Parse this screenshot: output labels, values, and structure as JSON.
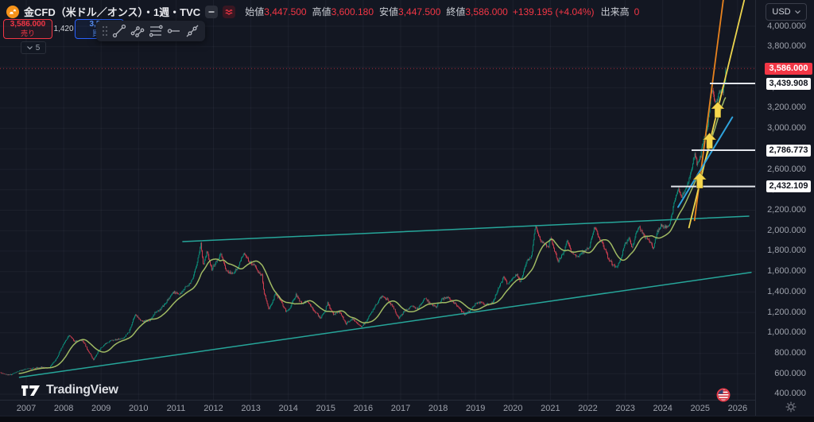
{
  "header": {
    "symbol_title": "金CFD（米ドル／オンス）・1週・TVC",
    "legend": [
      {
        "label": "始値",
        "value": "3,447.500"
      },
      {
        "label": "高値",
        "value": "3,600.180"
      },
      {
        "label": "安値",
        "value": "3,447.500"
      },
      {
        "label": "終値",
        "value": "3,586.000"
      }
    ],
    "change": "+139.195 (+4.04%)",
    "volume_label": "出来高",
    "volume_value": "0",
    "label_color": "#c9ccd3",
    "value_color": "#f23645",
    "symbol_icon_color": "#f7931a"
  },
  "trade_panel": {
    "sell": {
      "price": "3,586.000",
      "label": "売り",
      "color": "#f23645"
    },
    "spread": "1,420",
    "buy": {
      "price": "3,587",
      "label": "買い",
      "color": "#2962ff"
    }
  },
  "drawing_toolbar": {
    "icons": [
      "drag-handle",
      "trend-line",
      "parallel-trend-lines",
      "horizontal-lines",
      "horizontal-ray",
      "extended-line"
    ]
  },
  "object_tree_badge": {
    "count": "5"
  },
  "price_axis": {
    "currency": "USD",
    "tick_values": [
      4000,
      3800,
      3600,
      3400,
      3200,
      3000,
      2800,
      2600,
      2400,
      2200,
      2000,
      1800,
      1600,
      1400,
      1200,
      1000,
      800,
      600,
      400
    ],
    "current_price_label": {
      "value": 3586.0,
      "text": "3,586.000"
    },
    "level_labels": [
      {
        "value": 3439.908,
        "text": "3,439.908"
      },
      {
        "value": 2786.773,
        "text": "2,786.773"
      },
      {
        "value": 2432.109,
        "text": "2,432.109"
      }
    ]
  },
  "time_axis": {
    "years": [
      2007,
      2008,
      2009,
      2010,
      2011,
      2012,
      2013,
      2014,
      2015,
      2016,
      2017,
      2018,
      2019,
      2020,
      2021,
      2022,
      2023,
      2024,
      2025,
      2026
    ]
  },
  "footer": {
    "logo_text": "TradingView"
  },
  "event_marker": {
    "type": "us-flag",
    "year": 2025.6
  },
  "chart_data": {
    "type": "candlestick",
    "title": "金CFD（米ドル／オンス） 1週 TVC",
    "x_range": [
      2006.3,
      2026.45
    ],
    "y_range": [
      380,
      4050
    ],
    "x_ticks": [
      2007,
      2008,
      2009,
      2010,
      2011,
      2012,
      2013,
      2014,
      2015,
      2016,
      2017,
      2018,
      2019,
      2020,
      2021,
      2022,
      2023,
      2024,
      2025,
      2026
    ],
    "y_ticks": [
      400,
      600,
      800,
      1000,
      1200,
      1400,
      1600,
      1800,
      2000,
      2200,
      2400,
      2600,
      2800,
      3000,
      3200,
      3400,
      3600,
      3800,
      4000
    ],
    "last_candle": {
      "open": 3447.5,
      "high": 3600.18,
      "low": 3447.5,
      "close": 3586.0
    },
    "current_price": 3586.0,
    "ma_window": 26,
    "colors": {
      "up": "#0b9a83",
      "down": "#e14254",
      "ma": "#a0ba63",
      "trend": "#26a69a",
      "ray": "#e3e6ec",
      "arrow": "#f6d74d",
      "price_line": "#f23645"
    },
    "price_anchors": [
      [
        2006.3,
        612
      ],
      [
        2006.55,
        585
      ],
      [
        2006.8,
        625
      ],
      [
        2007.0,
        645
      ],
      [
        2007.2,
        655
      ],
      [
        2007.45,
        665
      ],
      [
        2007.6,
        650
      ],
      [
        2007.8,
        745
      ],
      [
        2008.0,
        890
      ],
      [
        2008.15,
        975
      ],
      [
        2008.3,
        915
      ],
      [
        2008.5,
        930
      ],
      [
        2008.65,
        830
      ],
      [
        2008.8,
        735
      ],
      [
        2008.95,
        835
      ],
      [
        2009.15,
        905
      ],
      [
        2009.3,
        930
      ],
      [
        2009.45,
        935
      ],
      [
        2009.6,
        950
      ],
      [
        2009.75,
        1010
      ],
      [
        2009.9,
        1180
      ],
      [
        2010.1,
        1110
      ],
      [
        2010.3,
        1125
      ],
      [
        2010.45,
        1200
      ],
      [
        2010.6,
        1235
      ],
      [
        2010.8,
        1330
      ],
      [
        2010.95,
        1400
      ],
      [
        2011.1,
        1375
      ],
      [
        2011.25,
        1440
      ],
      [
        2011.45,
        1520
      ],
      [
        2011.6,
        1750
      ],
      [
        2011.67,
        1880
      ],
      [
        2011.73,
        1650
      ],
      [
        2011.83,
        1800
      ],
      [
        2011.95,
        1620
      ],
      [
        2012.1,
        1710
      ],
      [
        2012.2,
        1770
      ],
      [
        2012.35,
        1600
      ],
      [
        2012.5,
        1580
      ],
      [
        2012.65,
        1630
      ],
      [
        2012.8,
        1780
      ],
      [
        2012.95,
        1700
      ],
      [
        2013.1,
        1660
      ],
      [
        2013.2,
        1590
      ],
      [
        2013.3,
        1560
      ],
      [
        2013.35,
        1400
      ],
      [
        2013.48,
        1230
      ],
      [
        2013.6,
        1320
      ],
      [
        2013.65,
        1395
      ],
      [
        2013.8,
        1310
      ],
      [
        2013.95,
        1205
      ],
      [
        2014.05,
        1250
      ],
      [
        2014.2,
        1375
      ],
      [
        2014.35,
        1290
      ],
      [
        2014.5,
        1310
      ],
      [
        2014.65,
        1240
      ],
      [
        2014.85,
        1145
      ],
      [
        2014.95,
        1190
      ],
      [
        2015.05,
        1290
      ],
      [
        2015.2,
        1180
      ],
      [
        2015.35,
        1210
      ],
      [
        2015.55,
        1090
      ],
      [
        2015.7,
        1135
      ],
      [
        2015.8,
        1110
      ],
      [
        2015.95,
        1055
      ],
      [
        2016.1,
        1120
      ],
      [
        2016.3,
        1250
      ],
      [
        2016.5,
        1365
      ],
      [
        2016.65,
        1320
      ],
      [
        2016.8,
        1255
      ],
      [
        2016.95,
        1135
      ],
      [
        2017.1,
        1215
      ],
      [
        2017.3,
        1260
      ],
      [
        2017.45,
        1230
      ],
      [
        2017.65,
        1345
      ],
      [
        2017.8,
        1280
      ],
      [
        2017.95,
        1255
      ],
      [
        2018.1,
        1330
      ],
      [
        2018.25,
        1350
      ],
      [
        2018.4,
        1300
      ],
      [
        2018.55,
        1250
      ],
      [
        2018.7,
        1180
      ],
      [
        2018.85,
        1215
      ],
      [
        2019.0,
        1285
      ],
      [
        2019.15,
        1300
      ],
      [
        2019.3,
        1275
      ],
      [
        2019.45,
        1290
      ],
      [
        2019.6,
        1420
      ],
      [
        2019.75,
        1550
      ],
      [
        2019.85,
        1480
      ],
      [
        2019.95,
        1515
      ],
      [
        2020.1,
        1575
      ],
      [
        2020.2,
        1495
      ],
      [
        2020.35,
        1685
      ],
      [
        2020.5,
        1755
      ],
      [
        2020.6,
        2060
      ],
      [
        2020.72,
        1910
      ],
      [
        2020.85,
        1870
      ],
      [
        2020.95,
        1840
      ],
      [
        2021.0,
        1950
      ],
      [
        2021.1,
        1820
      ],
      [
        2021.2,
        1695
      ],
      [
        2021.35,
        1780
      ],
      [
        2021.45,
        1900
      ],
      [
        2021.55,
        1790
      ],
      [
        2021.65,
        1770
      ],
      [
        2021.75,
        1745
      ],
      [
        2021.85,
        1790
      ],
      [
        2021.95,
        1805
      ],
      [
        2022.05,
        1850
      ],
      [
        2022.18,
        2040
      ],
      [
        2022.3,
        1930
      ],
      [
        2022.42,
        1850
      ],
      [
        2022.55,
        1725
      ],
      [
        2022.68,
        1660
      ],
      [
        2022.78,
        1640
      ],
      [
        2022.9,
        1755
      ],
      [
        2023.0,
        1870
      ],
      [
        2023.1,
        1935
      ],
      [
        2023.18,
        1830
      ],
      [
        2023.3,
        1990
      ],
      [
        2023.38,
        2030
      ],
      [
        2023.5,
        1950
      ],
      [
        2023.62,
        1920
      ],
      [
        2023.75,
        1830
      ],
      [
        2023.85,
        1985
      ],
      [
        2023.95,
        2050
      ],
      [
        2024.05,
        2045
      ],
      [
        2024.15,
        2030
      ],
      [
        2024.25,
        2170
      ],
      [
        2024.35,
        2350
      ],
      [
        2024.42,
        2415
      ],
      [
        2024.5,
        2330
      ],
      [
        2024.6,
        2390
      ],
      [
        2024.7,
        2500
      ],
      [
        2024.8,
        2660
      ],
      [
        2024.86,
        2770
      ],
      [
        2024.92,
        2650
      ],
      [
        2025.0,
        2710
      ],
      [
        2025.08,
        2870
      ],
      [
        2025.15,
        2935
      ],
      [
        2025.22,
        3090
      ],
      [
        2025.3,
        3420
      ],
      [
        2025.36,
        3310
      ],
      [
        2025.42,
        3240
      ],
      [
        2025.5,
        3330
      ],
      [
        2025.56,
        3390
      ],
      [
        2025.6,
        3345
      ],
      [
        2025.66,
        3450
      ]
    ],
    "levels": [
      {
        "value": 3439.908,
        "start_year": 2025.26
      },
      {
        "value": 2786.773,
        "start_year": 2024.77
      },
      {
        "value": 2432.109,
        "start_year": 2024.22
      }
    ],
    "trendlines": [
      {
        "name": "upper-resistance",
        "color": "#26a69a",
        "width": 1.5,
        "from": [
          2011.18,
          1893
        ],
        "to": [
          2026.3,
          2142
        ]
      },
      {
        "name": "lower-support",
        "color": "#26a69a",
        "width": 1.5,
        "from": [
          2006.82,
          565
        ],
        "to": [
          2026.36,
          1592
        ]
      },
      {
        "name": "projection-orange",
        "color": "#e8821e",
        "width": 1.8,
        "from": [
          2024.85,
          2100
        ],
        "to": [
          2025.62,
          4265
        ]
      },
      {
        "name": "projection-yellow",
        "color": "#edd54e",
        "width": 1.8,
        "from": [
          2024.7,
          2030
        ],
        "to": [
          2026.18,
          4260
        ]
      },
      {
        "name": "projection-cyan",
        "color": "#2fa3dd",
        "width": 2.0,
        "from": [
          2024.41,
          2230
        ],
        "to": [
          2025.86,
          3110
        ]
      }
    ],
    "arrows": [
      {
        "year": 2024.99,
        "tip_price": 2569
      },
      {
        "year": 2025.25,
        "tip_price": 2958
      },
      {
        "year": 2025.47,
        "tip_price": 3261
      }
    ]
  }
}
